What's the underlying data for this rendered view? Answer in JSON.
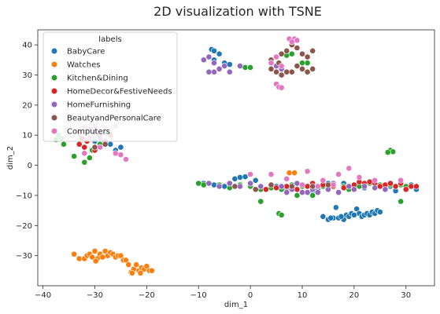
{
  "chart_data": {
    "type": "scatter",
    "title": "2D visualization with TSNE",
    "xlabel": "dim_1",
    "ylabel": "dim_2",
    "xlim": [
      -41,
      35.5
    ],
    "ylim": [
      -40,
      45
    ],
    "xticks": [
      -40,
      -30,
      -20,
      -10,
      0,
      10,
      20,
      30
    ],
    "yticks": [
      -30,
      -20,
      -10,
      0,
      10,
      20,
      30,
      40
    ],
    "grid": false,
    "legend": {
      "title": "labels",
      "placement": "top-left"
    },
    "series": [
      {
        "name": "BabyCare",
        "color": "#1f77b4",
        "points": [
          [
            -7.5,
            38.5
          ],
          [
            -7,
            38
          ],
          [
            -6,
            37
          ],
          [
            -5,
            34
          ],
          [
            -4,
            33.5
          ],
          [
            -7,
            35
          ],
          [
            -29,
            10
          ],
          [
            -27,
            7
          ],
          [
            -25,
            6
          ],
          [
            -26,
            5
          ],
          [
            -30,
            8
          ],
          [
            -28,
            11
          ],
          [
            -9,
            -6
          ],
          [
            -7,
            -6.5
          ],
          [
            -5,
            -7
          ],
          [
            -3,
            -4.5
          ],
          [
            -2,
            -4
          ],
          [
            -1,
            -3.8
          ],
          [
            1,
            -5
          ],
          [
            2,
            -7
          ],
          [
            5,
            -7
          ],
          [
            7,
            -7.5
          ],
          [
            10,
            -7
          ],
          [
            12,
            -8.5
          ],
          [
            13,
            -8
          ],
          [
            15,
            -6
          ],
          [
            16,
            -7
          ],
          [
            18,
            -6
          ],
          [
            20,
            -7
          ],
          [
            22,
            -7.5
          ],
          [
            24,
            -6
          ],
          [
            26,
            -7
          ],
          [
            27,
            -7
          ],
          [
            28,
            -8.5
          ],
          [
            30,
            -7
          ],
          [
            31,
            -6.5
          ],
          [
            32,
            -8
          ],
          [
            14,
            -17
          ],
          [
            15,
            -18
          ],
          [
            16,
            -17.5
          ],
          [
            17,
            -17.5
          ],
          [
            18,
            -18
          ],
          [
            18.5,
            -16.5
          ],
          [
            19,
            -17
          ],
          [
            19.5,
            -16
          ],
          [
            20,
            -16.5
          ],
          [
            20.5,
            -14.5
          ],
          [
            21,
            -16
          ],
          [
            21.5,
            -17
          ],
          [
            22,
            -16.5
          ],
          [
            22.5,
            -16
          ],
          [
            23,
            -16.5
          ],
          [
            23.5,
            -15.5
          ],
          [
            24,
            -16
          ],
          [
            24.5,
            -15
          ],
          [
            25,
            -15.5
          ],
          [
            16.5,
            -14
          ],
          [
            17.5,
            -17
          ],
          [
            15.5,
            -17.5
          ]
        ]
      },
      {
        "name": "Watches",
        "color": "#ff7f0e",
        "points": [
          [
            -34,
            -29.5
          ],
          [
            -33,
            -31
          ],
          [
            -32,
            -31
          ],
          [
            -31.5,
            -30
          ],
          [
            -31,
            -29.5
          ],
          [
            -30.5,
            -30.5
          ],
          [
            -30,
            -28.5
          ],
          [
            -29.5,
            -31
          ],
          [
            -29,
            -29.5
          ],
          [
            -28.5,
            -30.5
          ],
          [
            -28,
            -28.5
          ],
          [
            -27.5,
            -30
          ],
          [
            -27,
            -29
          ],
          [
            -26.5,
            -29.5
          ],
          [
            -26,
            -30.5
          ],
          [
            -25.5,
            -30
          ],
          [
            -25,
            -30
          ],
          [
            -24.5,
            -31.5
          ],
          [
            -24,
            -31.5
          ],
          [
            -23.5,
            -33
          ],
          [
            -23,
            -35.5
          ],
          [
            -22.5,
            -34.5
          ],
          [
            -22,
            -33
          ],
          [
            -21.5,
            -35
          ],
          [
            -21,
            -34
          ],
          [
            -20.5,
            -34.5
          ],
          [
            -20,
            -33.5
          ],
          [
            -19.5,
            -35
          ],
          [
            -19,
            -35
          ],
          [
            -22.8,
            -35.8
          ],
          [
            -21.2,
            -35.8
          ],
          [
            -29.8,
            -31.8
          ],
          [
            7.5,
            -2.5
          ],
          [
            8.5,
            -2.5
          ]
        ]
      },
      {
        "name": "Kitchen&Dining",
        "color": "#2ca02c",
        "points": [
          [
            -37,
            10
          ],
          [
            -36.5,
            9
          ],
          [
            -36,
            7
          ],
          [
            -37.5,
            8.5
          ],
          [
            -33,
            10.5
          ],
          [
            -32,
            1
          ],
          [
            -31,
            2.5
          ],
          [
            -30.5,
            5
          ],
          [
            -29,
            7
          ],
          [
            -34,
            3
          ],
          [
            7,
            36.5
          ],
          [
            8,
            37
          ],
          [
            10,
            34
          ],
          [
            11,
            34
          ],
          [
            -1,
            32.5
          ],
          [
            0,
            32.5
          ],
          [
            -10,
            -6
          ],
          [
            -9,
            -6.5
          ],
          [
            -8,
            -6
          ],
          [
            -6,
            -6.5
          ],
          [
            -4,
            -7.5
          ],
          [
            -3,
            -7
          ],
          [
            -2,
            -6.5
          ],
          [
            0,
            -7
          ],
          [
            2,
            -8
          ],
          [
            4,
            -7.5
          ],
          [
            6,
            -8
          ],
          [
            8,
            -6.5
          ],
          [
            10,
            -7
          ],
          [
            11,
            -7
          ],
          [
            12,
            -6
          ],
          [
            14,
            -7
          ],
          [
            16,
            -6
          ],
          [
            18,
            -7
          ],
          [
            19,
            -8
          ],
          [
            21,
            -7
          ],
          [
            23,
            -6
          ],
          [
            25,
            -6.5
          ],
          [
            27,
            -6.5
          ],
          [
            29,
            -6.5
          ],
          [
            30,
            -7
          ],
          [
            27,
            5
          ],
          [
            27.5,
            4.5
          ],
          [
            26.5,
            4.3
          ],
          [
            2,
            -12
          ],
          [
            5.5,
            -16
          ],
          [
            6,
            -16.5
          ],
          [
            29,
            -12
          ],
          [
            9,
            -10
          ],
          [
            12,
            -10
          ],
          [
            25,
            -7
          ]
        ]
      },
      {
        "name": "HomeDecor&FestiveNeeds",
        "color": "#d62728",
        "points": [
          [
            -33,
            11
          ],
          [
            -32.5,
            9
          ],
          [
            -33,
            7
          ],
          [
            -32,
            6
          ],
          [
            -31.5,
            8
          ],
          [
            -30,
            5
          ],
          [
            -29,
            10
          ],
          [
            -28,
            12
          ],
          [
            -27,
            10
          ],
          [
            3,
            -8
          ],
          [
            5,
            -7.5
          ],
          [
            7,
            -7
          ],
          [
            9,
            -8
          ],
          [
            10,
            -6.5
          ],
          [
            11,
            -7
          ],
          [
            12,
            -6
          ],
          [
            14,
            -6.5
          ],
          [
            16,
            -7
          ],
          [
            18,
            -7.5
          ],
          [
            20,
            -6.5
          ],
          [
            21,
            -5.5
          ],
          [
            22,
            -6
          ],
          [
            23,
            -5.5
          ],
          [
            24,
            -6
          ],
          [
            25,
            -7
          ],
          [
            26,
            -6.5
          ],
          [
            27,
            -6
          ],
          [
            28,
            -7
          ],
          [
            29,
            -6
          ],
          [
            30,
            -8
          ],
          [
            31,
            -7
          ],
          [
            32,
            -7
          ]
        ]
      },
      {
        "name": "HomeFurnishing",
        "color": "#9467bd",
        "points": [
          [
            -9,
            35
          ],
          [
            -8,
            36
          ],
          [
            -7,
            34
          ],
          [
            -6,
            32
          ],
          [
            -7,
            31
          ],
          [
            -8,
            31
          ],
          [
            -5,
            33
          ],
          [
            -4,
            31
          ],
          [
            -2,
            33
          ],
          [
            -30,
            11
          ],
          [
            -29,
            9
          ],
          [
            -28,
            8
          ],
          [
            -31,
            12
          ],
          [
            5,
            33
          ],
          [
            6,
            32
          ],
          [
            -8,
            -6
          ],
          [
            -6,
            -7
          ],
          [
            -4,
            -6
          ],
          [
            -2,
            -7
          ],
          [
            0,
            -6
          ],
          [
            2,
            -7
          ],
          [
            4,
            -6.5
          ],
          [
            6,
            -7
          ],
          [
            8,
            -8
          ],
          [
            10,
            -9
          ],
          [
            12,
            -8
          ],
          [
            13,
            -9
          ],
          [
            15,
            -8
          ],
          [
            16,
            -6
          ],
          [
            17,
            -9
          ],
          [
            19,
            -7
          ],
          [
            20,
            -8
          ],
          [
            22,
            -7
          ],
          [
            24,
            -7.5
          ],
          [
            26,
            -8
          ],
          [
            9,
            -6
          ],
          [
            7,
            -9
          ],
          [
            11,
            -9
          ]
        ]
      },
      {
        "name": "BeautyandPersonalCare",
        "color": "#8c564b",
        "points": [
          [
            4,
            35
          ],
          [
            5,
            36
          ],
          [
            5.5,
            34
          ],
          [
            6,
            37
          ],
          [
            7,
            38
          ],
          [
            8,
            40
          ],
          [
            9,
            39
          ],
          [
            10,
            37
          ],
          [
            11,
            36
          ],
          [
            12,
            38
          ],
          [
            10,
            32
          ],
          [
            11,
            31
          ],
          [
            12,
            32
          ],
          [
            9,
            33
          ],
          [
            8,
            31
          ],
          [
            7,
            31
          ],
          [
            6,
            30
          ],
          [
            5,
            31
          ],
          [
            4,
            32
          ],
          [
            -30,
            6
          ],
          [
            -28,
            7
          ],
          [
            -3,
            -7
          ],
          [
            1,
            -8
          ],
          [
            4,
            -6.5
          ],
          [
            8,
            -7
          ],
          [
            12,
            -7
          ],
          [
            15,
            -6.5
          ]
        ]
      },
      {
        "name": "Computers",
        "color": "#e377c2",
        "points": [
          [
            7.5,
            42
          ],
          [
            8.5,
            42
          ],
          [
            9,
            41.5
          ],
          [
            8,
            41
          ],
          [
            5,
            36
          ],
          [
            4,
            34
          ],
          [
            6,
            33
          ],
          [
            5,
            27
          ],
          [
            5.5,
            26
          ],
          [
            6,
            25.8
          ],
          [
            -32,
            12.5
          ],
          [
            -30,
            13
          ],
          [
            -28,
            12
          ],
          [
            -26,
            13
          ],
          [
            -26,
            4
          ],
          [
            -25,
            3.5
          ],
          [
            -24,
            2
          ],
          [
            -31,
            9
          ],
          [
            -29,
            6
          ],
          [
            -32,
            4
          ],
          [
            0,
            -3
          ],
          [
            4,
            -3
          ],
          [
            7,
            -4.5
          ],
          [
            10,
            -6.5
          ],
          [
            11,
            -2
          ],
          [
            14,
            -5
          ],
          [
            17,
            -3
          ],
          [
            19,
            -1
          ],
          [
            21,
            -4
          ],
          [
            24,
            -5
          ],
          [
            29,
            -5
          ],
          [
            13,
            -7
          ],
          [
            16,
            -6.5
          ]
        ]
      }
    ]
  }
}
